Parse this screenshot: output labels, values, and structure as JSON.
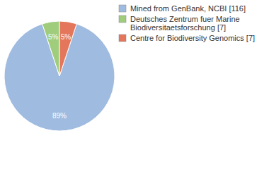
{
  "chart_data": {
    "type": "pie",
    "categories": [
      "Mined from GenBank, NCBI [116]",
      "Deutsches Zentrum fuer Marine Biodiversitaetsforschung [7]",
      "Centre for Biodiversity Genomics [7]"
    ],
    "values": [
      89,
      5,
      5
    ],
    "value_labels": [
      "89%",
      "5%",
      "5%"
    ],
    "colors": [
      "#9fbbe0",
      "#9fcd7c",
      "#e4775b"
    ],
    "data_labels": true,
    "legend": "top-right"
  }
}
